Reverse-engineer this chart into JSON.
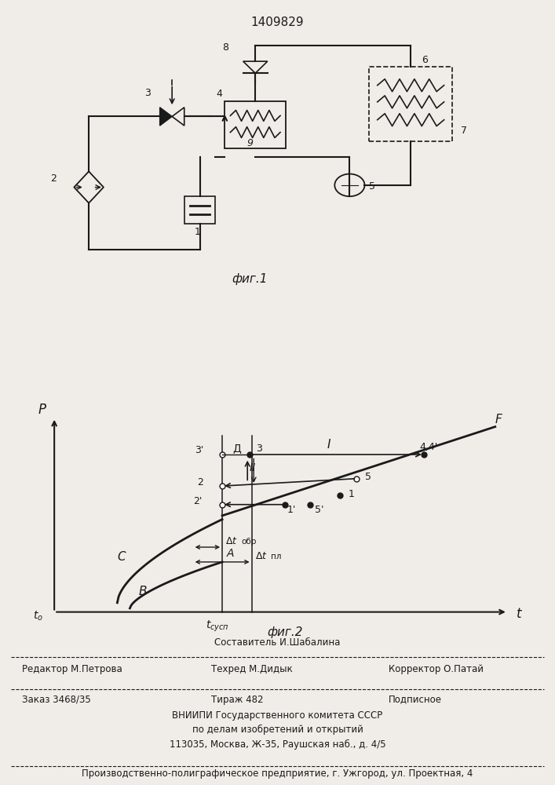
{
  "patent_number": "1409829",
  "fig1_caption": "фиг.1",
  "fig2_caption": "фиг.2",
  "bg_color": "#f0ede8",
  "line_color": "#1a1a1a"
}
